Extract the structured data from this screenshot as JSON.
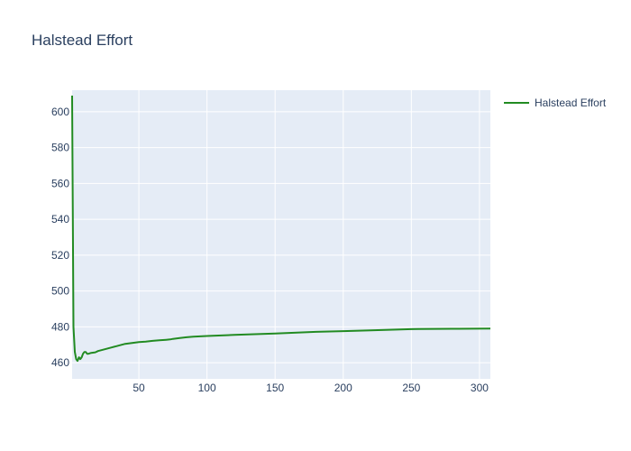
{
  "chart_data": {
    "type": "line",
    "title": "Halstead Effort",
    "xlabel": "",
    "ylabel": "",
    "xlim": [
      1,
      308
    ],
    "ylim": [
      451,
      612
    ],
    "grid": true,
    "legend_placement": "top-right",
    "x_ticks": [
      50,
      100,
      150,
      200,
      250,
      300
    ],
    "y_ticks": [
      460,
      480,
      500,
      520,
      540,
      560,
      580,
      600
    ],
    "colors": {
      "plot_bg": "#e5ecf6",
      "grid": "#ffffff",
      "text": "#2a3f5f",
      "series": "#228b22"
    },
    "series": [
      {
        "name": "Halstead Effort",
        "color": "#228b22",
        "x": [
          1,
          2,
          3,
          4,
          5,
          6,
          7,
          8,
          9,
          10,
          11,
          12,
          13,
          15,
          18,
          20,
          25,
          30,
          35,
          40,
          45,
          50,
          55,
          60,
          65,
          70,
          73,
          75,
          80,
          85,
          90,
          100,
          120,
          150,
          180,
          200,
          220,
          250,
          255,
          280,
          308
        ],
        "values": [
          609,
          480,
          466,
          462,
          461,
          463,
          462,
          463,
          465,
          466,
          466,
          465,
          465,
          465.5,
          465.8,
          466.5,
          467.5,
          468.5,
          469.5,
          470.5,
          471,
          471.5,
          471.8,
          472.2,
          472.5,
          472.8,
          473,
          473.3,
          473.8,
          474.2,
          474.5,
          474.9,
          475.5,
          476.3,
          477.2,
          477.6,
          478,
          478.7,
          478.8,
          478.9,
          479
        ]
      }
    ]
  }
}
